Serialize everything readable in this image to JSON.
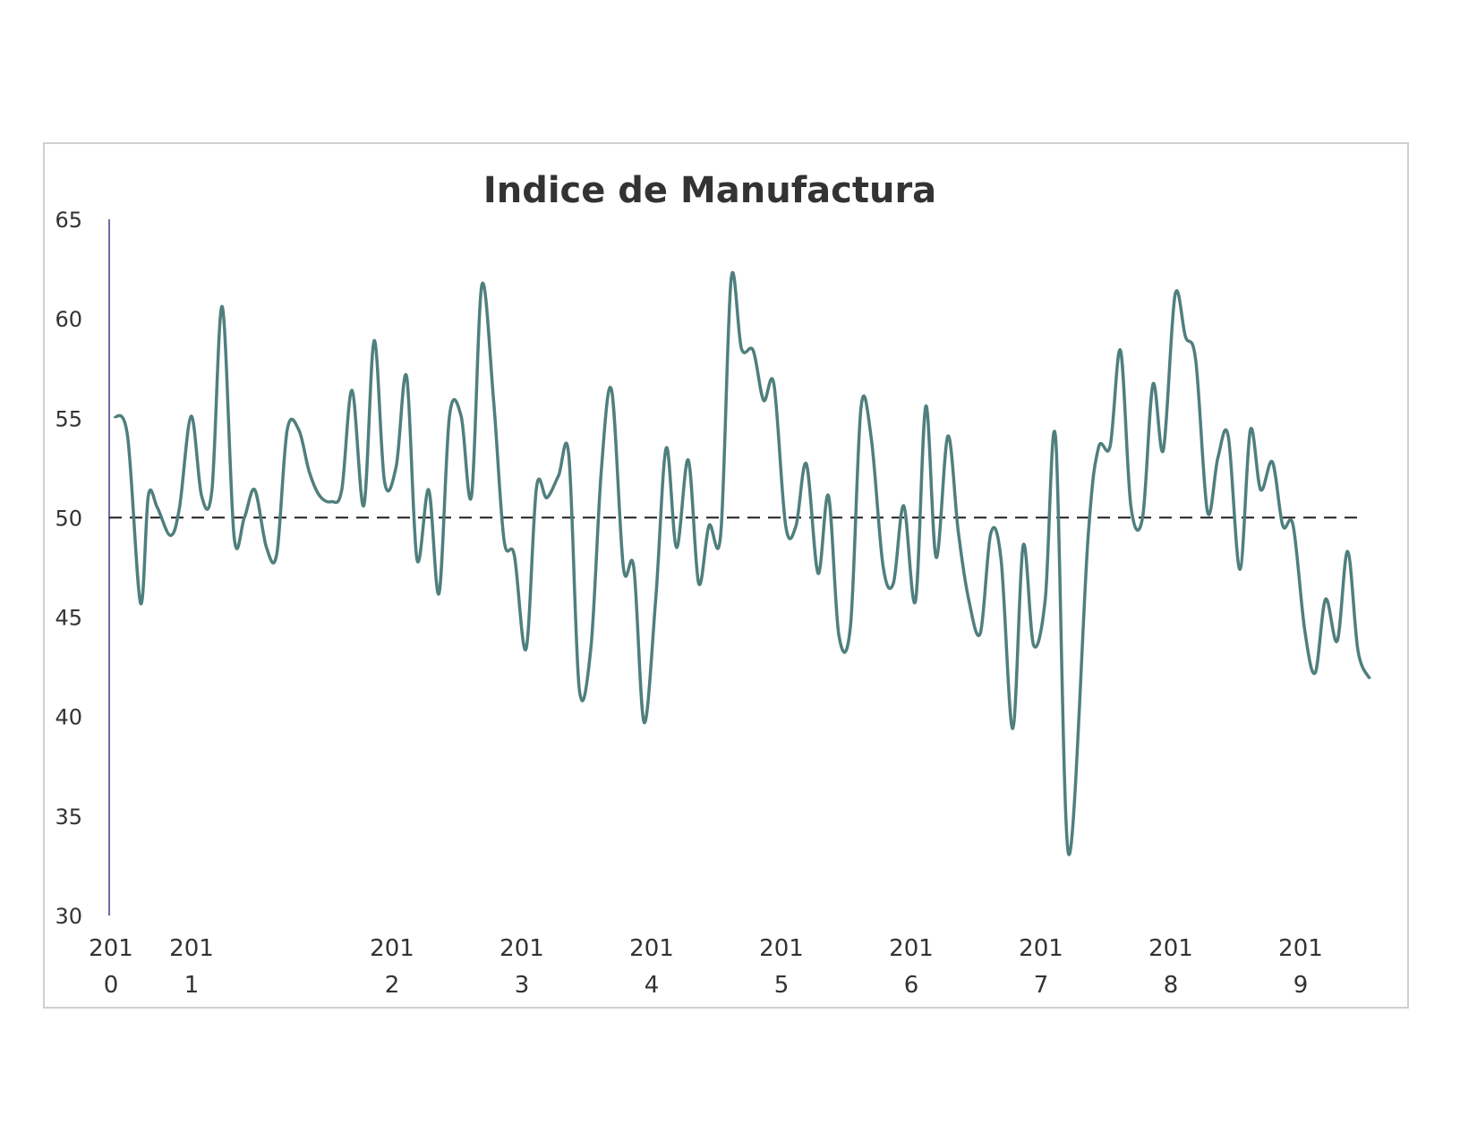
{
  "chart_data": {
    "type": "line",
    "title": "Indice de Manufactura",
    "xlabel": "",
    "ylabel": "",
    "ylim": [
      30,
      65
    ],
    "yticks": [
      30,
      35,
      40,
      45,
      50,
      55,
      60,
      65
    ],
    "x_tick_labels": [
      {
        "year": 2010,
        "line1": "201",
        "line2": "0"
      },
      {
        "year": 2011,
        "line1": "201",
        "line2": "1"
      },
      {
        "year": 2012,
        "line1": "201",
        "line2": "2"
      },
      {
        "year": 2013,
        "line1": "201",
        "line2": "3"
      },
      {
        "year": 2014,
        "line1": "201",
        "line2": "4"
      },
      {
        "year": 2015,
        "line1": "201",
        "line2": "5"
      },
      {
        "year": 2016,
        "line1": "201",
        "line2": "6"
      },
      {
        "year": 2017,
        "line1": "201",
        "line2": "7"
      },
      {
        "year": 2018,
        "line1": "201",
        "line2": "8"
      },
      {
        "year": 2019,
        "line1": "201",
        "line2": "9"
      }
    ],
    "reference_line": {
      "y": 50,
      "style": "dashed"
    },
    "grid": false,
    "line_color": "#4f7f7d",
    "series": [
      {
        "points": [
          [
            2010.0,
            55.1
          ],
          [
            2010.1,
            54.1
          ],
          [
            2010.2,
            45.7
          ],
          [
            2010.26,
            51.1
          ],
          [
            2010.33,
            50.5
          ],
          [
            2010.43,
            49.1
          ],
          [
            2010.5,
            50.5
          ],
          [
            2010.59,
            55.1
          ],
          [
            2010.67,
            51.1
          ],
          [
            2010.75,
            51.4
          ],
          [
            2010.83,
            60.6
          ],
          [
            2010.92,
            49.1
          ],
          [
            2011.0,
            50.0
          ],
          [
            2011.08,
            51.4
          ],
          [
            2011.17,
            48.5
          ],
          [
            2011.25,
            48.2
          ],
          [
            2011.33,
            54.4
          ],
          [
            2011.42,
            54.4
          ],
          [
            2011.5,
            52.3
          ],
          [
            2011.58,
            51.1
          ],
          [
            2011.67,
            50.8
          ],
          [
            2011.75,
            51.4
          ],
          [
            2011.83,
            56.4
          ],
          [
            2011.92,
            50.6
          ],
          [
            2012.0,
            58.9
          ],
          [
            2012.08,
            51.8
          ],
          [
            2012.17,
            52.6
          ],
          [
            2012.25,
            57.1
          ],
          [
            2012.33,
            47.9
          ],
          [
            2012.42,
            51.4
          ],
          [
            2012.5,
            46.2
          ],
          [
            2012.58,
            55.1
          ],
          [
            2012.67,
            55.1
          ],
          [
            2012.75,
            51.1
          ],
          [
            2012.83,
            61.7
          ],
          [
            2012.92,
            55.9
          ],
          [
            2013.0,
            48.9
          ],
          [
            2013.08,
            48.1
          ],
          [
            2013.17,
            43.4
          ],
          [
            2013.25,
            51.5
          ],
          [
            2013.33,
            51.0
          ],
          [
            2013.42,
            52.1
          ],
          [
            2013.5,
            53.1
          ],
          [
            2013.58,
            41.4
          ],
          [
            2013.67,
            43.5
          ],
          [
            2013.75,
            52.4
          ],
          [
            2013.83,
            56.4
          ],
          [
            2013.92,
            47.5
          ],
          [
            2014.0,
            47.5
          ],
          [
            2014.08,
            39.7
          ],
          [
            2014.17,
            46.0
          ],
          [
            2014.25,
            53.5
          ],
          [
            2014.33,
            48.5
          ],
          [
            2014.42,
            52.9
          ],
          [
            2014.5,
            46.7
          ],
          [
            2014.58,
            49.6
          ],
          [
            2014.67,
            49.2
          ],
          [
            2014.75,
            62.0
          ],
          [
            2014.83,
            58.5
          ],
          [
            2014.92,
            58.4
          ],
          [
            2015.0,
            55.9
          ],
          [
            2015.08,
            56.7
          ],
          [
            2015.17,
            49.6
          ],
          [
            2015.25,
            49.6
          ],
          [
            2015.33,
            52.7
          ],
          [
            2015.42,
            47.2
          ],
          [
            2015.5,
            51.1
          ],
          [
            2015.58,
            44.1
          ],
          [
            2015.67,
            44.6
          ],
          [
            2015.75,
            55.5
          ],
          [
            2015.83,
            54.0
          ],
          [
            2015.92,
            47.6
          ],
          [
            2016.0,
            46.7
          ],
          [
            2016.08,
            50.6
          ],
          [
            2016.17,
            45.8
          ],
          [
            2016.25,
            55.6
          ],
          [
            2016.33,
            48.0
          ],
          [
            2016.42,
            54.1
          ],
          [
            2016.5,
            49.3
          ],
          [
            2016.58,
            45.9
          ],
          [
            2016.67,
            44.2
          ],
          [
            2016.75,
            49.2
          ],
          [
            2016.83,
            47.9
          ],
          [
            2016.92,
            39.4
          ],
          [
            2017.0,
            48.6
          ],
          [
            2017.08,
            43.6
          ],
          [
            2017.17,
            45.9
          ],
          [
            2017.25,
            54.0
          ],
          [
            2017.35,
            33.1
          ],
          [
            2017.5,
            49.0
          ],
          [
            2017.58,
            53.5
          ],
          [
            2017.67,
            53.6
          ],
          [
            2017.75,
            58.4
          ],
          [
            2017.83,
            50.6
          ],
          [
            2017.92,
            50.0
          ],
          [
            2018.0,
            56.7
          ],
          [
            2018.08,
            53.4
          ],
          [
            2018.17,
            61.2
          ],
          [
            2018.25,
            59.1
          ],
          [
            2018.33,
            57.9
          ],
          [
            2018.42,
            50.3
          ],
          [
            2018.5,
            53.0
          ],
          [
            2018.58,
            54.1
          ],
          [
            2018.67,
            47.4
          ],
          [
            2018.75,
            54.4
          ],
          [
            2018.83,
            51.4
          ],
          [
            2018.92,
            52.8
          ],
          [
            2019.0,
            49.6
          ],
          [
            2019.08,
            49.6
          ],
          [
            2019.17,
            44.3
          ],
          [
            2019.25,
            42.2
          ],
          [
            2019.33,
            45.9
          ],
          [
            2019.42,
            43.8
          ],
          [
            2019.5,
            48.3
          ],
          [
            2019.58,
            43.3
          ],
          [
            2019.67,
            41.9
          ]
        ]
      }
    ]
  }
}
